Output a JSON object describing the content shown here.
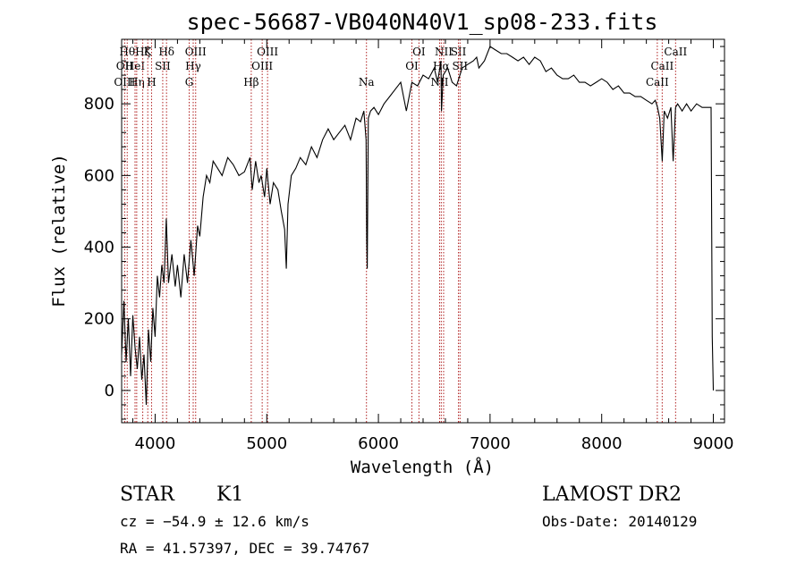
{
  "chart_data": {
    "type": "line",
    "title": "spec-56687-VB040N40V1_sp08-233.fits",
    "xlabel": "Wavelength (Å)",
    "ylabel": "Flux (relative)",
    "xlim": [
      3700,
      9100
    ],
    "ylim": [
      -90,
      980
    ],
    "x_ticks": [
      4000,
      5000,
      6000,
      7000,
      8000,
      9000
    ],
    "y_ticks": [
      0,
      200,
      400,
      600,
      800
    ],
    "grid": false,
    "series": [
      {
        "color": "#000000",
        "x": [
          3700,
          3720,
          3740,
          3760,
          3780,
          3800,
          3820,
          3840,
          3860,
          3880,
          3900,
          3920,
          3940,
          3960,
          3980,
          4000,
          4020,
          4040,
          4060,
          4080,
          4100,
          4120,
          4150,
          4180,
          4200,
          4230,
          4260,
          4290,
          4320,
          4350,
          4380,
          4400,
          4430,
          4460,
          4490,
          4520,
          4560,
          4600,
          4650,
          4700,
          4750,
          4800,
          4850,
          4870,
          4900,
          4930,
          4950,
          4980,
          5000,
          5030,
          5060,
          5100,
          5130,
          5160,
          5175,
          5190,
          5220,
          5260,
          5300,
          5350,
          5400,
          5450,
          5500,
          5550,
          5600,
          5650,
          5700,
          5750,
          5800,
          5840,
          5870,
          5890,
          5895,
          5900,
          5910,
          5930,
          5960,
          6000,
          6050,
          6100,
          6150,
          6200,
          6250,
          6300,
          6350,
          6400,
          6450,
          6500,
          6530,
          6560,
          6565,
          6580,
          6620,
          6660,
          6700,
          6750,
          6800,
          6850,
          6880,
          6900,
          6950,
          7000,
          7050,
          7100,
          7150,
          7200,
          7250,
          7300,
          7350,
          7400,
          7450,
          7500,
          7550,
          7600,
          7650,
          7700,
          7750,
          7800,
          7850,
          7900,
          7950,
          8000,
          8050,
          8100,
          8150,
          8200,
          8250,
          8300,
          8350,
          8400,
          8450,
          8480,
          8500,
          8520,
          8542,
          8560,
          8590,
          8620,
          8640,
          8662,
          8680,
          8720,
          8760,
          8800,
          8850,
          8900,
          8950,
          8980,
          8990,
          9000
        ],
        "values": [
          100,
          250,
          80,
          200,
          40,
          210,
          120,
          60,
          150,
          30,
          100,
          -40,
          170,
          80,
          230,
          150,
          320,
          260,
          350,
          300,
          480,
          300,
          380,
          290,
          350,
          260,
          380,
          300,
          420,
          320,
          460,
          430,
          540,
          600,
          580,
          640,
          620,
          600,
          650,
          630,
          600,
          610,
          650,
          560,
          640,
          580,
          600,
          540,
          620,
          520,
          580,
          560,
          500,
          450,
          340,
          520,
          600,
          620,
          650,
          630,
          680,
          650,
          700,
          730,
          700,
          720,
          740,
          700,
          760,
          750,
          780,
          700,
          420,
          340,
          760,
          780,
          790,
          770,
          800,
          820,
          840,
          860,
          780,
          860,
          850,
          880,
          870,
          900,
          860,
          920,
          780,
          880,
          900,
          860,
          850,
          900,
          910,
          920,
          930,
          900,
          920,
          960,
          950,
          940,
          940,
          930,
          920,
          930,
          910,
          930,
          920,
          890,
          900,
          880,
          870,
          870,
          880,
          860,
          860,
          850,
          860,
          870,
          860,
          840,
          850,
          830,
          830,
          820,
          820,
          810,
          800,
          810,
          790,
          760,
          640,
          780,
          760,
          790,
          640,
          790,
          800,
          780,
          800,
          780,
          800,
          790,
          790,
          790,
          150,
          0
        ]
      }
    ],
    "line_markers": [
      {
        "label": "Hθ",
        "x": 3750,
        "row": 0
      },
      {
        "label": "OII",
        "x": 3727,
        "row": 1
      },
      {
        "label": "OIII",
        "x": 3727,
        "row": 2
      },
      {
        "label": "HeI",
        "x": 3820,
        "row": 1
      },
      {
        "label": "Hη",
        "x": 3835,
        "row": 2
      },
      {
        "label": "Hζ",
        "x": 3889,
        "row": 0
      },
      {
        "label": "K",
        "x": 3934,
        "row": 0
      },
      {
        "label": "SII",
        "x": 4068,
        "row": 1
      },
      {
        "label": "H",
        "x": 3968,
        "row": 2
      },
      {
        "label": "Hδ",
        "x": 4102,
        "row": 0
      },
      {
        "label": "OIII",
        "x": 4363,
        "row": 0
      },
      {
        "label": "Hγ",
        "x": 4341,
        "row": 1
      },
      {
        "label": "G",
        "x": 4305,
        "row": 2
      },
      {
        "label": "OIII",
        "x": 5007,
        "row": 0
      },
      {
        "label": "OIII",
        "x": 4959,
        "row": 1
      },
      {
        "label": "Hβ",
        "x": 4861,
        "row": 2
      },
      {
        "label": "Na",
        "x": 5893,
        "row": 2
      },
      {
        "label": "OI",
        "x": 6363,
        "row": 0
      },
      {
        "label": "OI",
        "x": 6300,
        "row": 1
      },
      {
        "label": "NII",
        "x": 6584,
        "row": 0
      },
      {
        "label": "Hα",
        "x": 6563,
        "row": 1
      },
      {
        "label": "NII",
        "x": 6548,
        "row": 2
      },
      {
        "label": "SII",
        "x": 6717,
        "row": 0
      },
      {
        "label": "SII",
        "x": 6731,
        "row": 1
      },
      {
        "label": "CaII",
        "x": 8662,
        "row": 0
      },
      {
        "label": "CaII",
        "x": 8542,
        "row": 1
      },
      {
        "label": "CaII",
        "x": 8498,
        "row": 2
      }
    ]
  },
  "info": {
    "class": "STAR",
    "subclass": "K1",
    "survey": "LAMOST DR2",
    "cz": "cz = −54.9 ± 12.6 km/s",
    "obs_date": "Obs-Date: 20140129",
    "coords": "RA =  41.57397, DEC =  39.74767"
  }
}
